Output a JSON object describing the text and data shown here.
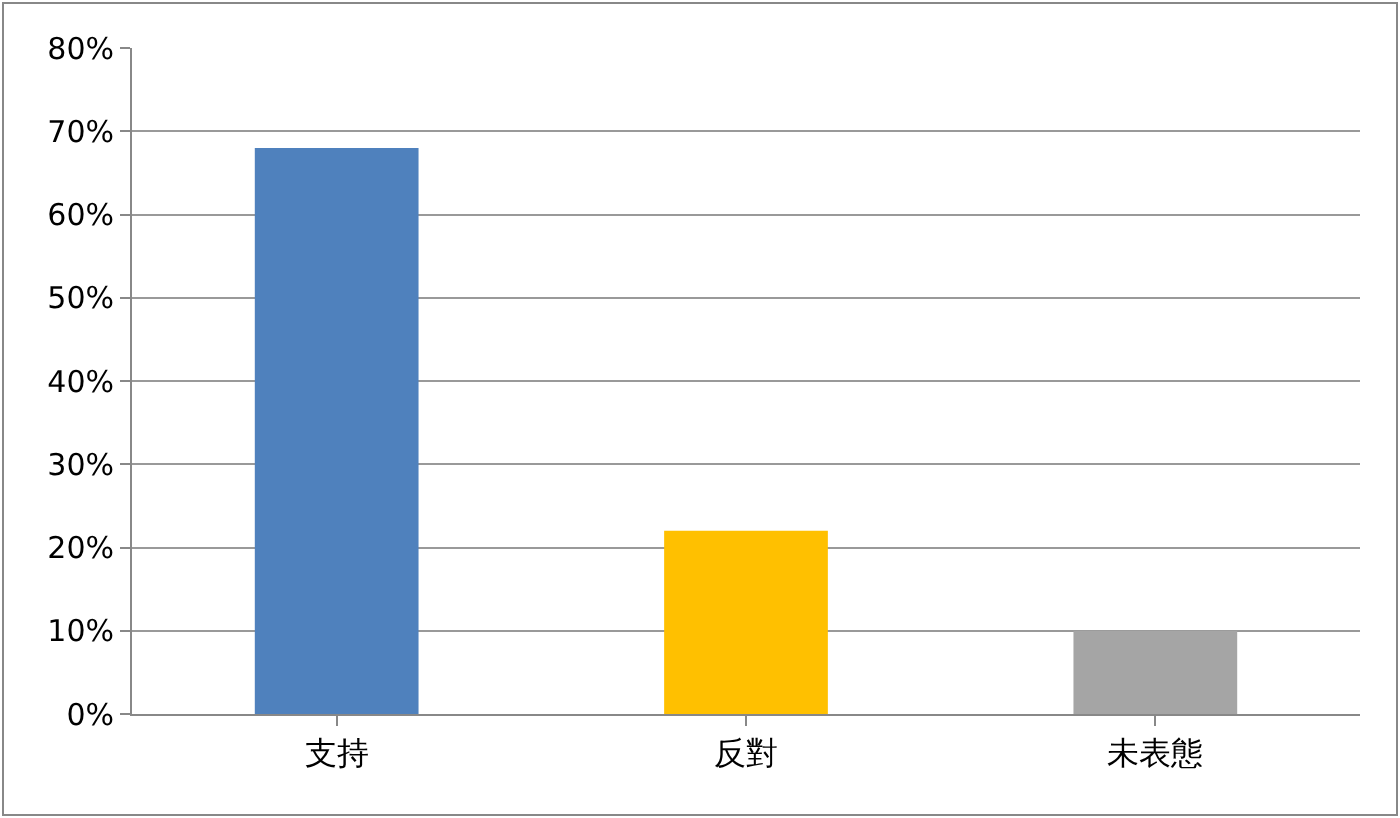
{
  "chart_data": {
    "type": "bar",
    "categories": [
      "支持",
      "反對",
      "未表態"
    ],
    "values": [
      68,
      22,
      10
    ],
    "colors": [
      "#4f81bd",
      "#ffc000",
      "#a5a5a5"
    ],
    "ylim": [
      0,
      80
    ],
    "yticks": [
      {
        "value": 0,
        "label": "0%"
      },
      {
        "value": 10,
        "label": "10%"
      },
      {
        "value": 20,
        "label": "20%"
      },
      {
        "value": 30,
        "label": "30%"
      },
      {
        "value": 40,
        "label": "40%"
      },
      {
        "value": 50,
        "label": "50%"
      },
      {
        "value": 60,
        "label": "60%"
      },
      {
        "value": 70,
        "label": "70%"
      },
      {
        "value": 80,
        "label": "80%"
      }
    ],
    "grid": "y"
  }
}
